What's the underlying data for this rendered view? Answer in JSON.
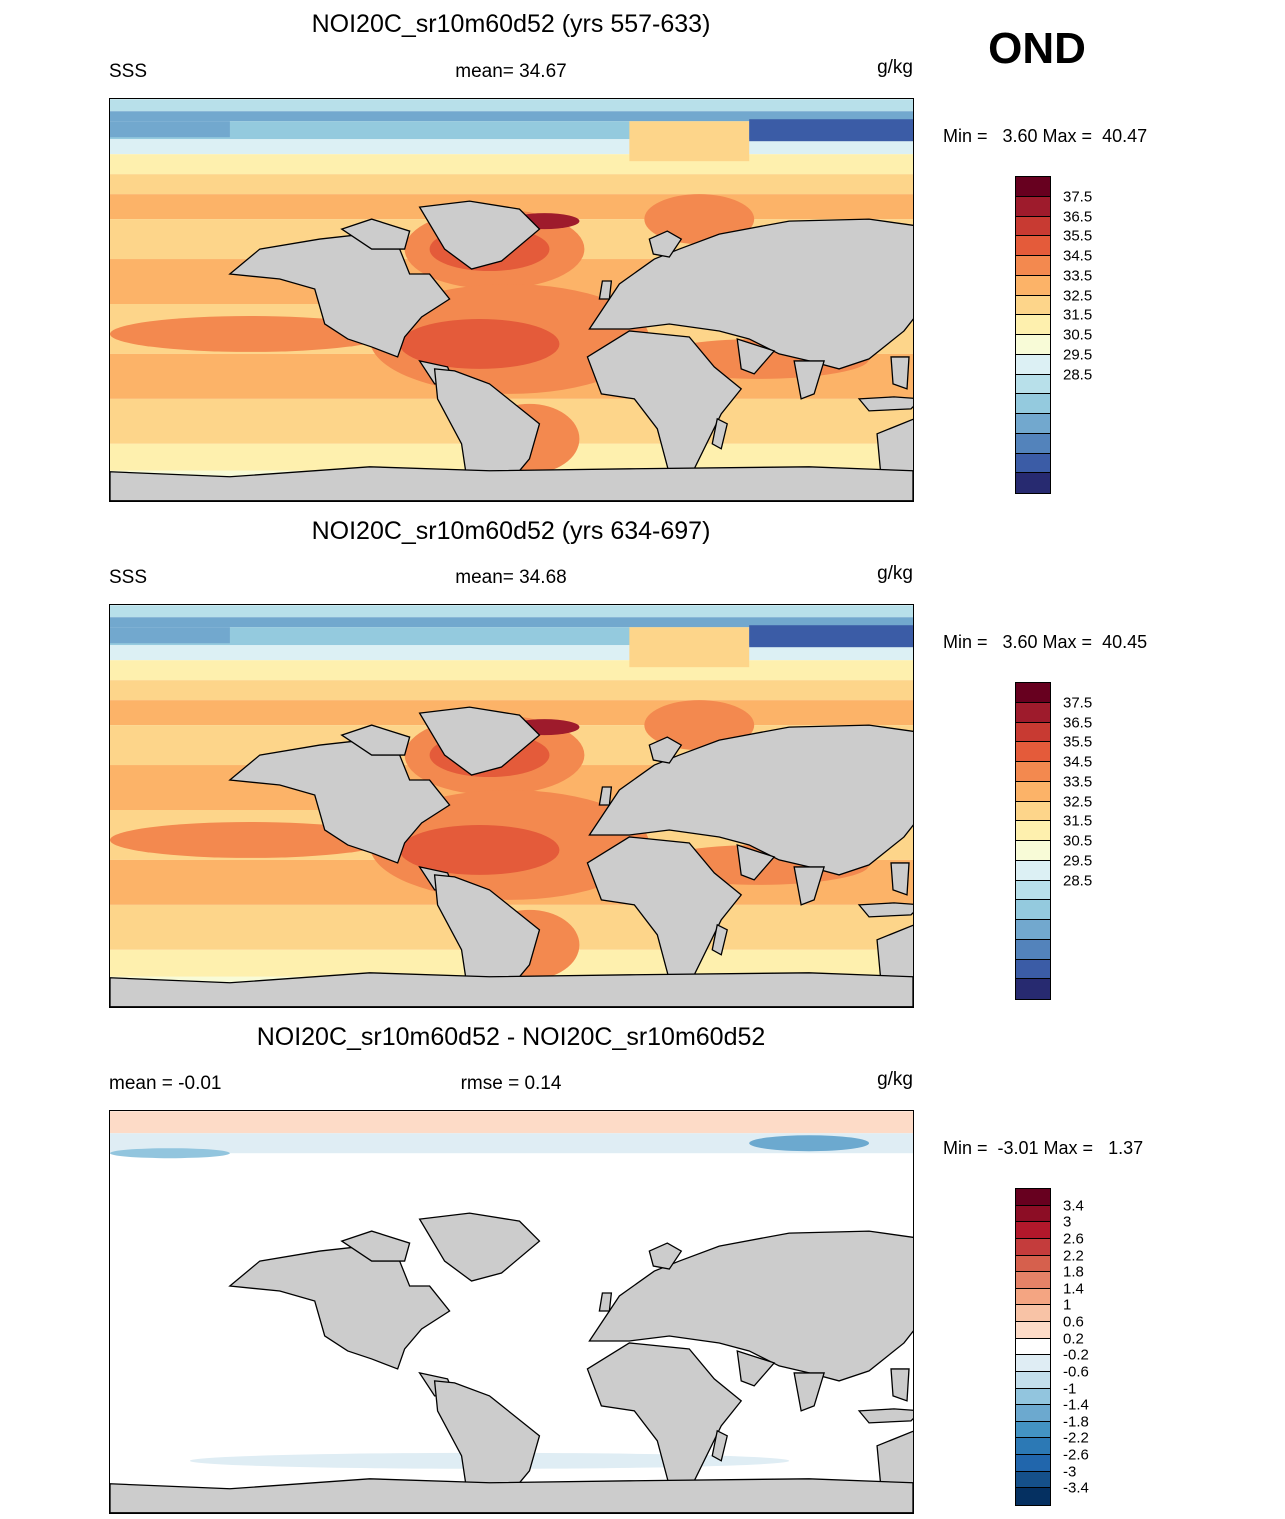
{
  "season": "OND",
  "units": "g/kg",
  "panels": [
    {
      "title": "NOI20C_sr10m60d52 (yrs 557-633)",
      "left_label": "SSS",
      "center_label": "mean=  34.67",
      "right_label": "g/kg",
      "minmax": "Min =   3.60 Max =  40.47",
      "kind": "abs"
    },
    {
      "title": "NOI20C_sr10m60d52 (yrs 634-697)",
      "left_label": "SSS",
      "center_label": "mean=  34.68",
      "right_label": "g/kg",
      "minmax": "Min =   3.60 Max =  40.45",
      "kind": "abs"
    },
    {
      "title": "NOI20C_sr10m60d52 - NOI20C_sr10m60d52",
      "left_label": "mean =  -0.01",
      "center_label": "rmse =   0.14",
      "right_label": "g/kg",
      "minmax": "Min =  -3.01 Max =   1.37",
      "kind": "diff"
    }
  ],
  "colorbars": {
    "abs": {
      "labels": [
        "37.5",
        "36.5",
        "35.5",
        "34.5",
        "33.5",
        "32.5",
        "31.5",
        "30.5",
        "29.5",
        "28.5"
      ],
      "colors": [
        "#67001f",
        "#9e1b2c",
        "#c83a32",
        "#e45b3a",
        "#f3894f",
        "#fcb368",
        "#fdd58a",
        "#fef0ae",
        "#f8fbd7",
        "#dcf0f4",
        "#b8e0ea",
        "#94cade",
        "#72a8ce",
        "#5383bb",
        "#3b5ca6",
        "#272a70"
      ]
    },
    "diff": {
      "labels": [
        "3.4",
        "3",
        "2.6",
        "2.2",
        "1.8",
        "1.4",
        "1",
        "0.6",
        "0.2",
        "-0.2",
        "-0.6",
        "-1",
        "-1.4",
        "-1.8",
        "-2.2",
        "-2.6",
        "-3",
        "-3.4"
      ],
      "colors": [
        "#67001f",
        "#8c0d25",
        "#b2182b",
        "#c43c3c",
        "#d6604d",
        "#e58267",
        "#f4a582",
        "#f8c3a6",
        "#fddbc7",
        "#ffffff",
        "#dfedf4",
        "#c3dfec",
        "#92c5de",
        "#6ca9cf",
        "#4393c3",
        "#2c79b5",
        "#2166ac",
        "#15508a",
        "#053061"
      ]
    }
  }
}
